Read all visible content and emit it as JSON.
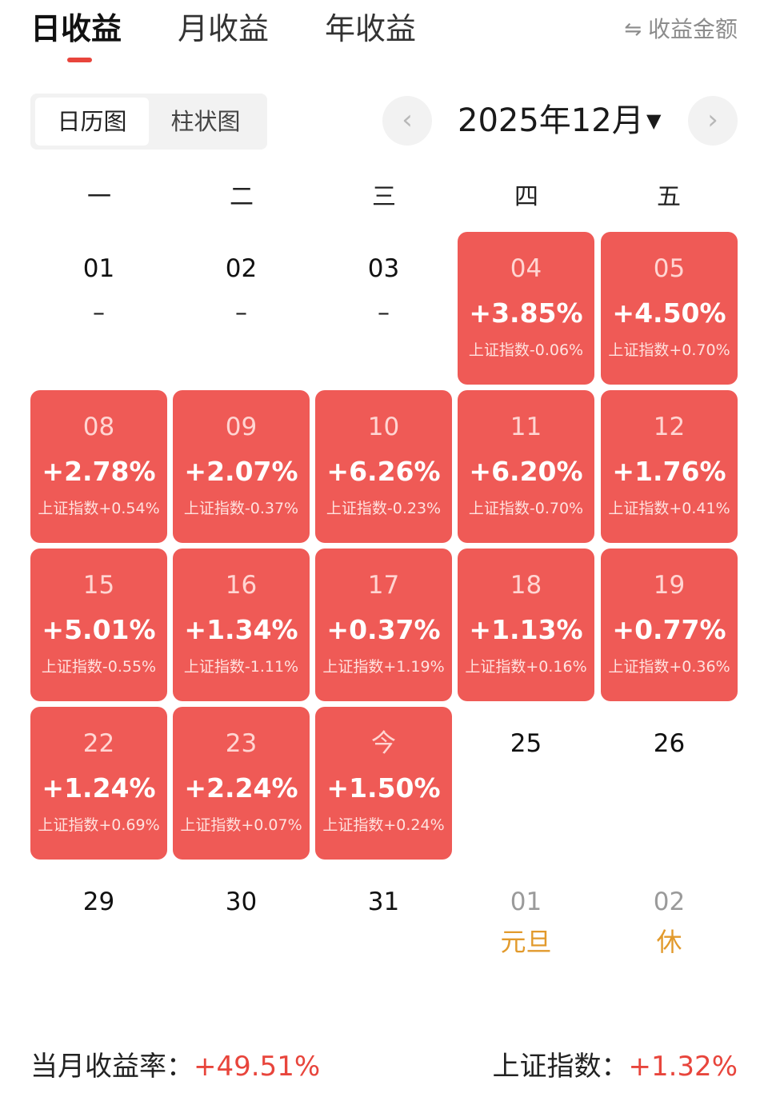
{
  "tabs": [
    {
      "label": "日收益",
      "active": true
    },
    {
      "label": "月收益",
      "active": false
    },
    {
      "label": "年收益",
      "active": false
    }
  ],
  "amount_toggle": {
    "icon": "swap-icon",
    "label": "收益金额"
  },
  "view_switch": {
    "calendar": "日历图",
    "bar": "柱状图"
  },
  "month_nav": {
    "label": "2025年12月",
    "prev_icon": "chevron-left-icon",
    "next_icon": "chevron-right-icon",
    "caret_icon": "caret-down-icon"
  },
  "weekdays": [
    "一",
    "二",
    "三",
    "四",
    "五"
  ],
  "days": [
    {
      "day": "01",
      "dash": "–"
    },
    {
      "day": "02",
      "dash": "–"
    },
    {
      "day": "03",
      "dash": "–"
    },
    {
      "day": "04",
      "return": "+3.85%",
      "index": "上证指数-0.06%"
    },
    {
      "day": "05",
      "return": "+4.50%",
      "index": "上证指数+0.70%"
    },
    {
      "day": "08",
      "return": "+2.78%",
      "index": "上证指数+0.54%"
    },
    {
      "day": "09",
      "return": "+2.07%",
      "index": "上证指数-0.37%"
    },
    {
      "day": "10",
      "return": "+6.26%",
      "index": "上证指数-0.23%"
    },
    {
      "day": "11",
      "return": "+6.20%",
      "index": "上证指数-0.70%"
    },
    {
      "day": "12",
      "return": "+1.76%",
      "index": "上证指数+0.41%"
    },
    {
      "day": "15",
      "return": "+5.01%",
      "index": "上证指数-0.55%"
    },
    {
      "day": "16",
      "return": "+1.34%",
      "index": "上证指数-1.11%"
    },
    {
      "day": "17",
      "return": "+0.37%",
      "index": "上证指数+1.19%"
    },
    {
      "day": "18",
      "return": "+1.13%",
      "index": "上证指数+0.16%"
    },
    {
      "day": "19",
      "return": "+0.77%",
      "index": "上证指数+0.36%"
    },
    {
      "day": "22",
      "return": "+1.24%",
      "index": "上证指数+0.69%"
    },
    {
      "day": "23",
      "return": "+2.24%",
      "index": "上证指数+0.07%"
    },
    {
      "day": "今",
      "return": "+1.50%",
      "index": "上证指数+0.24%"
    },
    {
      "day": "25"
    },
    {
      "day": "26"
    },
    {
      "day": "29"
    },
    {
      "day": "30"
    },
    {
      "day": "31"
    },
    {
      "day": "01",
      "holiday": "元旦",
      "muted": true
    },
    {
      "day": "02",
      "holiday": "休",
      "muted": true
    }
  ],
  "summary": {
    "monthly_label": "当月收益率：",
    "monthly_value": "+49.51%",
    "index_label": "上证指数：",
    "index_value": "+1.32%"
  },
  "colors": {
    "accent": "#e8453c",
    "cell_fill": "#ef5a56",
    "holiday": "#e29a2c"
  }
}
